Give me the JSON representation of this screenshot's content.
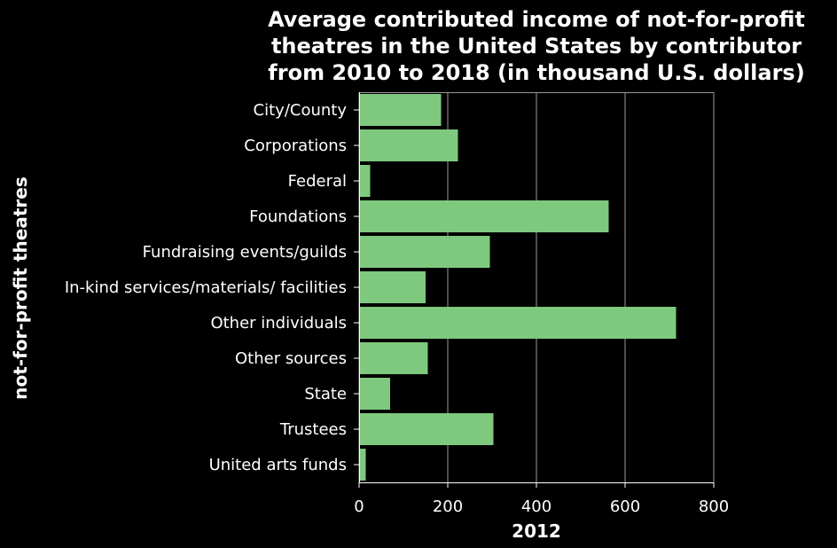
{
  "chart_data": {
    "type": "bar",
    "orientation": "horizontal",
    "title": "Average contributed income of not-for-profit theatres in the United States by contributor from 2010 to 2018 (in thousand U.S. dollars)",
    "title_lines": [
      "Average contributed income of not-for-profit",
      "theatres in the United States by contributor",
      "from 2010 to 2018 (in thousand U.S. dollars)"
    ],
    "xlabel": "2012",
    "ylabel": "not-for-profit theatres",
    "categories": [
      "City/County",
      "Corporations",
      "Federal",
      "Foundations",
      "Fundraising events/guilds",
      "In-kind services/materials/ facilities",
      "Other individuals",
      "Other sources",
      "State",
      "Trustees",
      "United arts funds"
    ],
    "values": [
      185,
      223,
      25,
      563,
      295,
      150,
      715,
      155,
      70,
      303,
      15
    ],
    "xlim": [
      0,
      800
    ],
    "xticks": [
      0,
      200,
      400,
      600,
      800
    ],
    "grid": "vertical",
    "bar_color": "#7fc97f",
    "background_color": "#000000"
  }
}
